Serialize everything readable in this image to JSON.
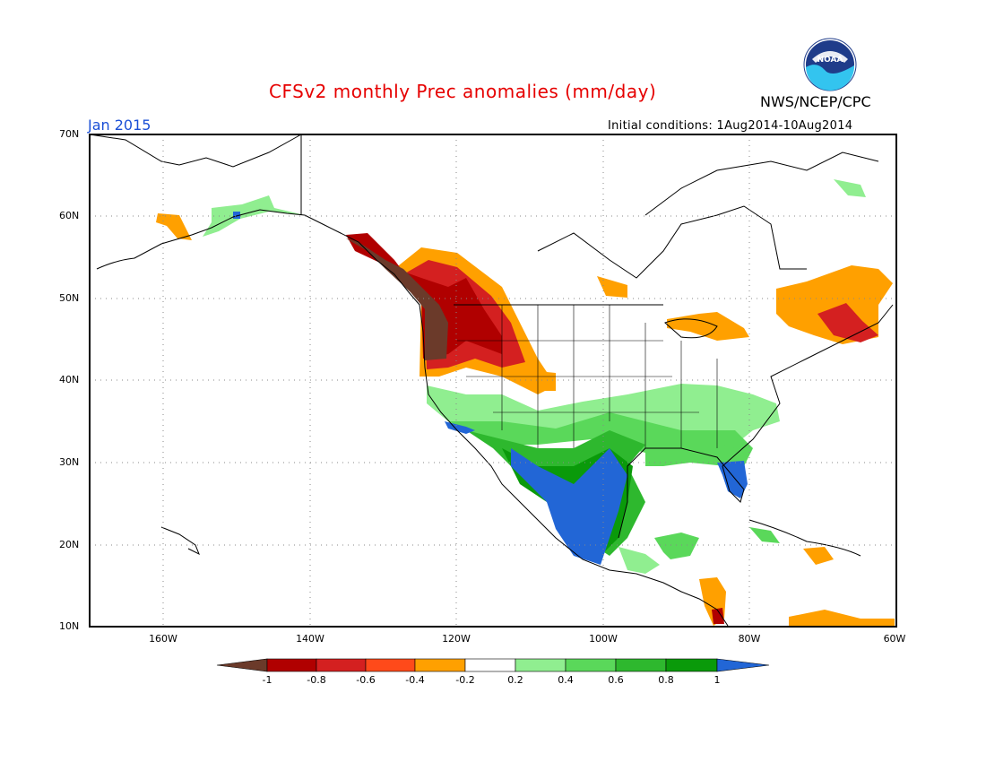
{
  "title": "CFSv2 monthly Prec anomalies (mm/day)",
  "agency": "NWS/NCEP/CPC",
  "logo_text": "NOAA",
  "period": "Jan 2015",
  "initial_conditions": "Initial conditions: 1Aug2014-10Aug2014",
  "lat_labels": [
    "70N",
    "60N",
    "50N",
    "40N",
    "30N",
    "20N",
    "10N"
  ],
  "lon_labels": [
    "160W",
    "140W",
    "120W",
    "100W",
    "80W",
    "60W"
  ],
  "colorbar": {
    "labels": [
      "-1",
      "-0.8",
      "-0.6",
      "-0.4",
      "-0.2",
      "0.2",
      "0.4",
      "0.6",
      "0.8",
      "1"
    ],
    "colors": [
      "#6b3a2a",
      "#b00000",
      "#d42020",
      "#ff4a1a",
      "#ffa000",
      "#ffffff",
      "#90ee90",
      "#5ad85a",
      "#2eb82e",
      "#0a9a0a",
      "#2266d6"
    ]
  },
  "colors": {
    "brown": "#6b3a2a",
    "darkred": "#b00000",
    "red": "#d42020",
    "orangered": "#ff4a1a",
    "orange": "#ffa000",
    "lightgreen": "#90ee90",
    "green": "#5ad85a",
    "midgreen": "#2eb82e",
    "darkgreen": "#0a9a0a",
    "blue": "#2266d6"
  }
}
